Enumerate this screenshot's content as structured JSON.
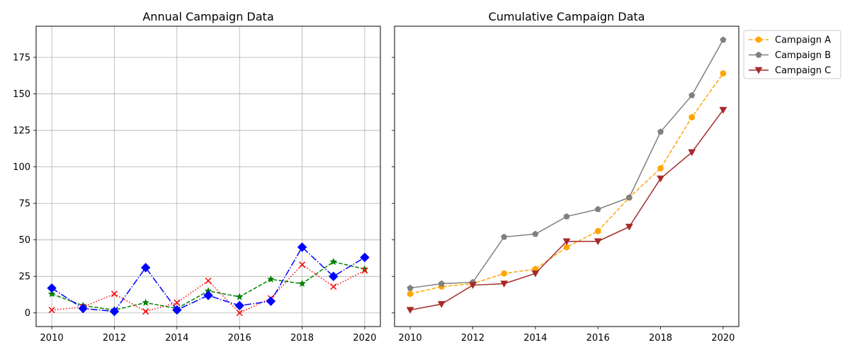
{
  "chart_data": [
    {
      "type": "line",
      "title": "Annual Campaign Data",
      "xlabel": "",
      "ylabel": "",
      "x": [
        2010,
        2011,
        2012,
        2013,
        2014,
        2015,
        2016,
        2017,
        2018,
        2019,
        2020
      ],
      "xlim": [
        2009.5,
        2020.5
      ],
      "ylim": [
        -9.35,
        196.35
      ],
      "xticks": [
        "2010",
        "2012",
        "2014",
        "2016",
        "2018",
        "2020"
      ],
      "yticks": [
        "0",
        "25",
        "50",
        "75",
        "100",
        "125",
        "150",
        "175"
      ],
      "grid": true,
      "series": [
        {
          "values": [
            13,
            5,
            2,
            7,
            3,
            15,
            11,
            23,
            20,
            35,
            30
          ],
          "color": "#008000",
          "linestyle": "dashed",
          "marker": "star"
        },
        {
          "values": [
            2,
            4,
            13,
            1,
            7,
            22,
            0,
            10,
            33,
            18,
            29
          ],
          "color": "#ff0000",
          "linestyle": "dotted",
          "marker": "x"
        },
        {
          "values": [
            17,
            3,
            1,
            31,
            2,
            12,
            5,
            8,
            45,
            25,
            38
          ],
          "color": "#0000ff",
          "linestyle": "dashdot",
          "marker": "diamond"
        }
      ]
    },
    {
      "type": "line",
      "title": "Cumulative Campaign Data",
      "xlabel": "",
      "ylabel": "",
      "x": [
        2010,
        2011,
        2012,
        2013,
        2014,
        2015,
        2016,
        2017,
        2018,
        2019,
        2020
      ],
      "xlim": [
        2009.5,
        2020.5
      ],
      "ylim": [
        -9.35,
        196.35
      ],
      "xticks": [
        "2010",
        "2012",
        "2014",
        "2016",
        "2018",
        "2020"
      ],
      "grid": false,
      "legend_position": "outside-top-right",
      "series": [
        {
          "name": "Campaign A",
          "values": [
            13,
            18,
            20,
            27,
            30,
            45,
            56,
            79,
            99,
            134,
            164
          ],
          "color": "#ffa500",
          "linestyle": "dashed",
          "marker": "hexagon"
        },
        {
          "name": "Campaign B",
          "values": [
            17,
            20,
            21,
            52,
            54,
            66,
            71,
            79,
            124,
            149,
            187
          ],
          "color": "#808080",
          "linestyle": "solid",
          "marker": "pentagon"
        },
        {
          "name": "Campaign C",
          "values": [
            2,
            6,
            19,
            20,
            27,
            49,
            49,
            59,
            92,
            110,
            139
          ],
          "color": "#a52a2a",
          "linestyle": "solid",
          "marker": "triangle-down"
        }
      ]
    }
  ]
}
